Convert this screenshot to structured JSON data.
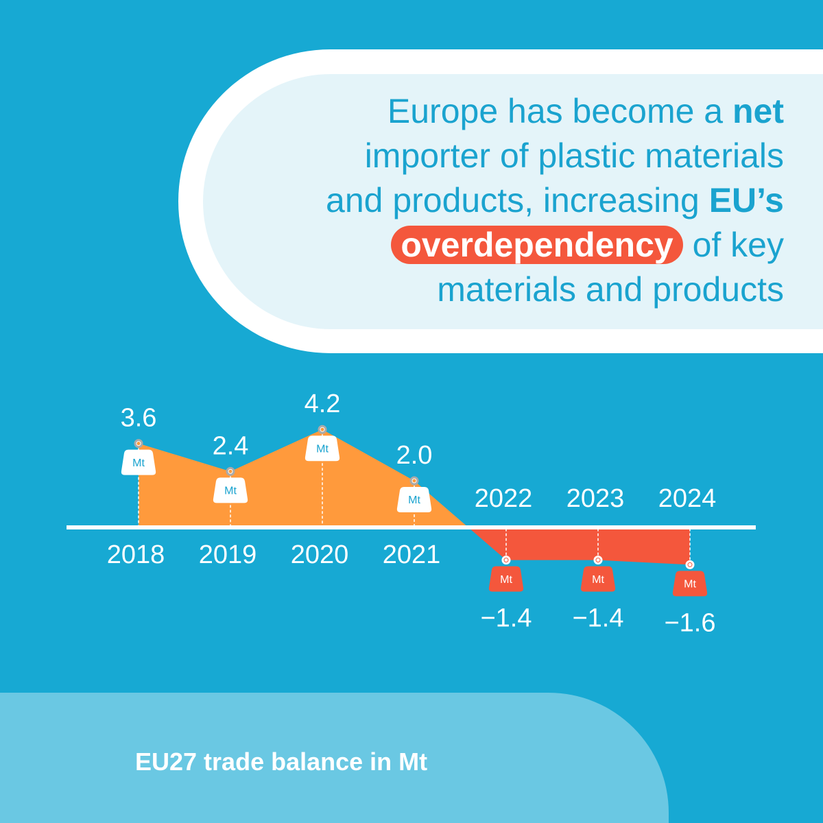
{
  "headline": [
    [
      {
        "text": "Europe has become a ",
        "style": "normal"
      },
      {
        "text": "net",
        "style": "bold"
      }
    ],
    [
      {
        "text": "importer of plastic materials",
        "style": "normal"
      }
    ],
    [
      {
        "text": "and products, increasing ",
        "style": "normal"
      },
      {
        "text": "EU’s",
        "style": "bold"
      }
    ],
    [
      {
        "text": "overdependency",
        "style": "highlight"
      },
      {
        "text": " of key",
        "style": "normal"
      }
    ],
    [
      {
        "text": "materials and products",
        "style": "normal"
      }
    ]
  ],
  "chart_data": {
    "type": "area",
    "caption": "EU27 trade balance in Mt",
    "unit": "Mt",
    "categories": [
      "2018",
      "2019",
      "2020",
      "2021",
      "2022",
      "2023",
      "2024"
    ],
    "values": [
      3.6,
      2.4,
      4.2,
      2.0,
      -1.4,
      -1.4,
      -1.6
    ],
    "value_labels": [
      "3.6",
      "2.4",
      "4.2",
      "2.0",
      "−1.4",
      "−1.4",
      "−1.6"
    ],
    "positive_color": "#ff9a3c",
    "negative_color": "#f4573c"
  }
}
